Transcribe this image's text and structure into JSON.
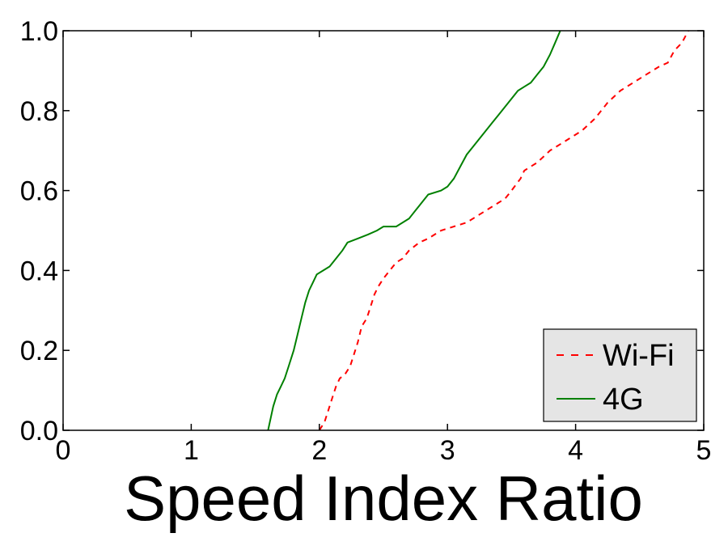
{
  "chart_data": {
    "type": "line",
    "title": "",
    "xlabel": "Speed Index Ratio",
    "ylabel": "",
    "xlim": [
      0,
      5
    ],
    "ylim": [
      0,
      1
    ],
    "xticks": [
      "0",
      "1",
      "2",
      "3",
      "4",
      "5"
    ],
    "yticks": [
      "0.0",
      "0.2",
      "0.4",
      "0.6",
      "0.8",
      "1.0"
    ],
    "grid": false,
    "legend_position": "lower-right",
    "series": [
      {
        "name": "Wi-Fi",
        "color": "#ff0000",
        "style": "dashed",
        "points": [
          [
            2.0,
            0.0
          ],
          [
            2.04,
            0.02
          ],
          [
            2.07,
            0.05
          ],
          [
            2.1,
            0.08
          ],
          [
            2.13,
            0.11
          ],
          [
            2.16,
            0.13
          ],
          [
            2.2,
            0.14
          ],
          [
            2.24,
            0.16
          ],
          [
            2.27,
            0.19
          ],
          [
            2.3,
            0.22
          ],
          [
            2.33,
            0.26
          ],
          [
            2.37,
            0.28
          ],
          [
            2.4,
            0.31
          ],
          [
            2.43,
            0.34
          ],
          [
            2.46,
            0.36
          ],
          [
            2.5,
            0.38
          ],
          [
            2.55,
            0.4
          ],
          [
            2.6,
            0.42
          ],
          [
            2.65,
            0.43
          ],
          [
            2.7,
            0.45
          ],
          [
            2.78,
            0.47
          ],
          [
            2.85,
            0.48
          ],
          [
            2.95,
            0.5
          ],
          [
            3.05,
            0.51
          ],
          [
            3.15,
            0.52
          ],
          [
            3.25,
            0.54
          ],
          [
            3.35,
            0.56
          ],
          [
            3.45,
            0.58
          ],
          [
            3.5,
            0.6
          ],
          [
            3.57,
            0.63
          ],
          [
            3.6,
            0.65
          ],
          [
            3.7,
            0.67
          ],
          [
            3.8,
            0.7
          ],
          [
            3.95,
            0.73
          ],
          [
            4.05,
            0.75
          ],
          [
            4.15,
            0.78
          ],
          [
            4.25,
            0.82
          ],
          [
            4.35,
            0.85
          ],
          [
            4.45,
            0.87
          ],
          [
            4.55,
            0.89
          ],
          [
            4.65,
            0.91
          ],
          [
            4.72,
            0.92
          ],
          [
            4.77,
            0.95
          ],
          [
            4.83,
            0.97
          ],
          [
            4.88,
            1.0
          ]
        ]
      },
      {
        "name": "4G",
        "color": "#008000",
        "style": "solid",
        "points": [
          [
            1.6,
            0.0
          ],
          [
            1.62,
            0.03
          ],
          [
            1.64,
            0.06
          ],
          [
            1.67,
            0.09
          ],
          [
            1.7,
            0.11
          ],
          [
            1.73,
            0.13
          ],
          [
            1.76,
            0.16
          ],
          [
            1.8,
            0.2
          ],
          [
            1.83,
            0.24
          ],
          [
            1.86,
            0.28
          ],
          [
            1.89,
            0.32
          ],
          [
            1.92,
            0.35
          ],
          [
            1.95,
            0.37
          ],
          [
            1.98,
            0.39
          ],
          [
            2.03,
            0.4
          ],
          [
            2.08,
            0.41
          ],
          [
            2.13,
            0.43
          ],
          [
            2.18,
            0.45
          ],
          [
            2.22,
            0.47
          ],
          [
            2.3,
            0.48
          ],
          [
            2.38,
            0.49
          ],
          [
            2.45,
            0.5
          ],
          [
            2.5,
            0.51
          ],
          [
            2.6,
            0.51
          ],
          [
            2.7,
            0.53
          ],
          [
            2.75,
            0.55
          ],
          [
            2.8,
            0.57
          ],
          [
            2.85,
            0.59
          ],
          [
            2.95,
            0.6
          ],
          [
            3.0,
            0.61
          ],
          [
            3.05,
            0.63
          ],
          [
            3.1,
            0.66
          ],
          [
            3.15,
            0.69
          ],
          [
            3.2,
            0.71
          ],
          [
            3.25,
            0.73
          ],
          [
            3.3,
            0.75
          ],
          [
            3.35,
            0.77
          ],
          [
            3.4,
            0.79
          ],
          [
            3.45,
            0.81
          ],
          [
            3.5,
            0.83
          ],
          [
            3.55,
            0.85
          ],
          [
            3.6,
            0.86
          ],
          [
            3.65,
            0.87
          ],
          [
            3.7,
            0.89
          ],
          [
            3.75,
            0.91
          ],
          [
            3.8,
            0.94
          ],
          [
            3.84,
            0.97
          ],
          [
            3.88,
            1.0
          ]
        ]
      }
    ]
  }
}
